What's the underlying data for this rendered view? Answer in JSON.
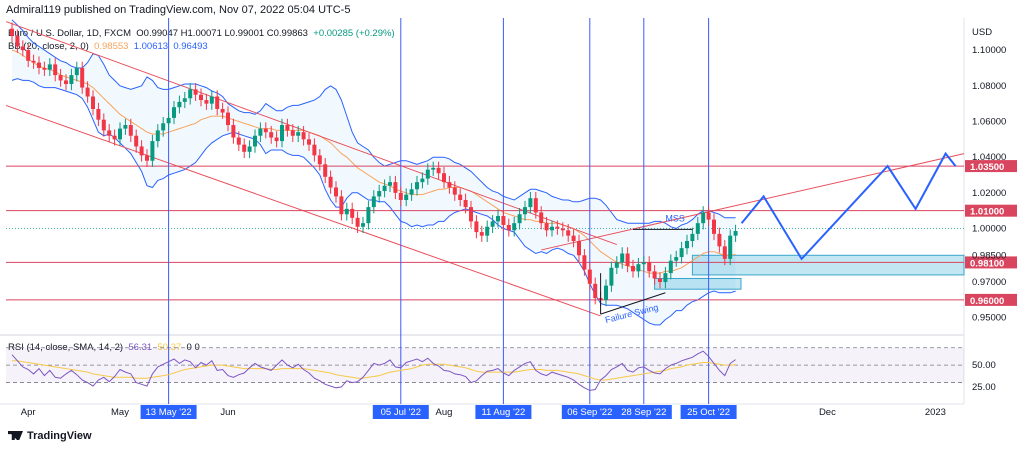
{
  "header": {
    "publisher": "Admiral119 published on TradingView.com, Nov 07, 2022 05:04 UTC-5"
  },
  "legend": {
    "symbol": "Euro / U.S. Dollar, 1D, FXCM",
    "ohlc": "O0.99047 H1.00071 L0.99001 C0.99863",
    "change": "+0.00285 (+0.29%)",
    "bb_label": "BB (20, close, 2, 0)",
    "bb_basis": "0.98553",
    "bb_upper": "1.00613",
    "bb_lower": "0.96493",
    "rsi_label": "RSI (14, close, SMA, 14, 2)",
    "rsi_value": "56.31",
    "rsi_sma": "50.37",
    "rsi_extra": "0  0"
  },
  "footer": {
    "brand": "TradingView"
  },
  "colors": {
    "up": "#089981",
    "down": "#f23645",
    "band": "#2962ff",
    "basis": "#f7a35c",
    "level": "#d9455f",
    "trend": "#e8505b",
    "projection": "#2962ff",
    "event_line": "#3d5afe",
    "zone": "#8fd3e8",
    "rsi": "#7e57c2",
    "rsi_sma": "#f7c948"
  },
  "chart_data": {
    "type": "candlestick",
    "symbol": "EURUSD",
    "timeframe": "1D",
    "y_axis_title": "USD",
    "ylim": [
      0.942,
      1.118
    ],
    "y_ticks": [
      1.1,
      1.08,
      1.06,
      1.04,
      1.02,
      1.0,
      0.985,
      0.97,
      0.95
    ],
    "x_ticks": [
      "Apr",
      "May",
      "Jun",
      "Aug",
      "Dec",
      "2023"
    ],
    "x_highlight_ticks": [
      "13 May '22",
      "05 Jul '22",
      "11 Aug '22",
      "06 Sep '22",
      "28 Sep '22",
      "25 Oct '22"
    ],
    "price_levels": [
      {
        "value": 1.035,
        "label": "1.03500"
      },
      {
        "value": 1.01,
        "label": "1.01000"
      },
      {
        "value": 0.981,
        "label": "0.98100"
      },
      {
        "value": 0.96,
        "label": "0.96000"
      }
    ],
    "annotations": [
      "MSS",
      "Failure Swing"
    ],
    "close_series": [
      1.108,
      1.102,
      1.1,
      1.094,
      1.093,
      1.09,
      1.089,
      1.092,
      1.086,
      1.083,
      1.081,
      1.086,
      1.09,
      1.079,
      1.074,
      1.067,
      1.061,
      1.055,
      1.052,
      1.05,
      1.056,
      1.058,
      1.052,
      1.046,
      1.041,
      1.038,
      1.049,
      1.055,
      1.059,
      1.062,
      1.068,
      1.071,
      1.073,
      1.078,
      1.075,
      1.072,
      1.07,
      1.074,
      1.067,
      1.065,
      1.058,
      1.051,
      1.047,
      1.043,
      1.046,
      1.052,
      1.056,
      1.054,
      1.051,
      1.049,
      1.058,
      1.055,
      1.052,
      1.054,
      1.05,
      1.047,
      1.041,
      1.036,
      1.029,
      1.023,
      1.018,
      1.008,
      1.011,
      1.006,
      1.001,
      1.003,
      1.012,
      1.018,
      1.021,
      1.024,
      1.026,
      1.02,
      1.016,
      1.019,
      1.022,
      1.026,
      1.028,
      1.033,
      1.034,
      1.031,
      1.026,
      1.023,
      1.019,
      1.016,
      1.012,
      1.004,
      0.998,
      0.996,
      1.001,
      1.004,
      1.007,
      1.002,
      0.999,
      1.003,
      1.008,
      1.012,
      1.017,
      1.009,
      1.003,
      0.999,
      1.001,
      1.0,
      0.999,
      0.996,
      0.993,
      0.985,
      0.977,
      0.969,
      0.961,
      0.96,
      0.968,
      0.978,
      0.981,
      0.986,
      0.979,
      0.976,
      0.98,
      0.981,
      0.976,
      0.972,
      0.97,
      0.975,
      0.982,
      0.984,
      0.989,
      0.993,
      0.997,
      1.003,
      1.009,
      1.005,
      0.997,
      0.99,
      0.983,
      0.996,
      0.9986
    ],
    "bb_upper_series": [
      1.117,
      1.114,
      1.111,
      1.107,
      1.104,
      1.102,
      1.1,
      1.098,
      1.096,
      1.094,
      1.093,
      1.091,
      1.09,
      1.09,
      1.093,
      1.098,
      1.097,
      1.092,
      1.086,
      1.083,
      1.08,
      1.079,
      1.078,
      1.079,
      1.08,
      1.085,
      1.083,
      1.079,
      1.078,
      1.078,
      1.079,
      1.08,
      1.081,
      1.081,
      1.081,
      1.08,
      1.079,
      1.077,
      1.076,
      1.074,
      1.07,
      1.068,
      1.066,
      1.065,
      1.065,
      1.064,
      1.066,
      1.07,
      1.068,
      1.066,
      1.066,
      1.068,
      1.069,
      1.069,
      1.07,
      1.071,
      1.072,
      1.074,
      1.078,
      1.08,
      1.078,
      1.072,
      1.063,
      1.054,
      1.048,
      1.046,
      1.044,
      1.04,
      1.037,
      1.035,
      1.036,
      1.037,
      1.038,
      1.038,
      1.037,
      1.036,
      1.037,
      1.038,
      1.04,
      1.04,
      1.04,
      1.039,
      1.037,
      1.036,
      1.034,
      1.032,
      1.029,
      1.026,
      1.023,
      1.021,
      1.02,
      1.018,
      1.017,
      1.016,
      1.018,
      1.02,
      1.022,
      1.022,
      1.021,
      1.02,
      1.018,
      1.017,
      1.016,
      1.016,
      1.015,
      1.015,
      1.016,
      1.017,
      1.017,
      1.016,
      1.013,
      1.009,
      1.005,
      1.004,
      1.003,
      1.003,
      1.003,
      1.003,
      1.003,
      1.004,
      1.004,
      1.003,
      1.001,
      1.0,
      1.002,
      1.003,
      1.005,
      1.008,
      1.01,
      1.01,
      1.009,
      1.008,
      1.006,
      1.006,
      1.006
    ],
    "bb_basis_series": [
      1.1,
      1.099,
      1.097,
      1.095,
      1.093,
      1.091,
      1.09,
      1.089,
      1.088,
      1.086,
      1.085,
      1.084,
      1.083,
      1.082,
      1.081,
      1.079,
      1.076,
      1.073,
      1.07,
      1.067,
      1.064,
      1.062,
      1.06,
      1.058,
      1.056,
      1.054,
      1.053,
      1.053,
      1.053,
      1.054,
      1.055,
      1.056,
      1.057,
      1.058,
      1.059,
      1.061,
      1.062,
      1.063,
      1.063,
      1.063,
      1.062,
      1.061,
      1.06,
      1.059,
      1.058,
      1.057,
      1.056,
      1.056,
      1.056,
      1.055,
      1.055,
      1.055,
      1.055,
      1.055,
      1.055,
      1.054,
      1.053,
      1.052,
      1.05,
      1.048,
      1.045,
      1.042,
      1.04,
      1.037,
      1.034,
      1.032,
      1.03,
      1.028,
      1.026,
      1.025,
      1.024,
      1.022,
      1.021,
      1.02,
      1.019,
      1.019,
      1.019,
      1.02,
      1.021,
      1.022,
      1.022,
      1.023,
      1.023,
      1.023,
      1.022,
      1.021,
      1.019,
      1.017,
      1.015,
      1.013,
      1.011,
      1.009,
      1.008,
      1.007,
      1.006,
      1.005,
      1.005,
      1.004,
      1.004,
      1.003,
      1.003,
      1.003,
      1.002,
      1.001,
      1.0,
      0.998,
      0.996,
      0.993,
      0.99,
      0.987,
      0.985,
      0.983,
      0.981,
      0.98,
      0.979,
      0.978,
      0.977,
      0.976,
      0.975,
      0.975,
      0.975,
      0.976,
      0.976,
      0.977,
      0.978,
      0.98,
      0.982,
      0.984,
      0.986,
      0.987,
      0.987,
      0.986,
      0.985,
      0.985,
      0.9855
    ],
    "bb_lower_series": [
      1.083,
      1.084,
      1.083,
      1.083,
      1.082,
      1.08,
      1.079,
      1.079,
      1.079,
      1.078,
      1.077,
      1.076,
      1.075,
      1.073,
      1.068,
      1.061,
      1.054,
      1.052,
      1.053,
      1.051,
      1.048,
      1.045,
      1.042,
      1.037,
      1.032,
      1.024,
      1.023,
      1.027,
      1.028,
      1.03,
      1.031,
      1.032,
      1.033,
      1.035,
      1.037,
      1.041,
      1.045,
      1.048,
      1.05,
      1.052,
      1.053,
      1.054,
      1.053,
      1.052,
      1.051,
      1.05,
      1.047,
      1.042,
      1.044,
      1.044,
      1.044,
      1.042,
      1.041,
      1.041,
      1.04,
      1.037,
      1.034,
      1.03,
      1.022,
      1.016,
      1.012,
      1.012,
      1.017,
      1.02,
      1.02,
      1.018,
      1.016,
      1.016,
      1.015,
      1.015,
      1.012,
      1.008,
      1.004,
      1.003,
      1.001,
      1.002,
      1.001,
      1.002,
      1.002,
      1.004,
      1.004,
      1.007,
      1.009,
      1.01,
      1.011,
      1.01,
      1.009,
      1.008,
      1.007,
      1.005,
      1.002,
      1.0,
      0.999,
      0.998,
      0.994,
      0.99,
      0.988,
      0.986,
      0.987,
      0.986,
      0.988,
      0.989,
      0.988,
      0.986,
      0.985,
      0.981,
      0.976,
      0.969,
      0.963,
      0.958,
      0.957,
      0.957,
      0.957,
      0.956,
      0.955,
      0.953,
      0.951,
      0.949,
      0.947,
      0.946,
      0.946,
      0.949,
      0.951,
      0.954,
      0.954,
      0.957,
      0.959,
      0.96,
      0.962,
      0.964,
      0.965,
      0.964,
      0.964,
      0.964,
      0.9649
    ],
    "rsi_series": [
      62,
      55,
      48,
      45,
      40,
      46,
      38,
      44,
      36,
      35,
      40,
      44,
      39,
      33,
      30,
      26,
      33,
      36,
      31,
      37,
      45,
      42,
      40,
      30,
      28,
      26,
      40,
      48,
      51,
      54,
      57,
      52,
      56,
      54,
      47,
      53,
      50,
      55,
      44,
      45,
      38,
      36,
      39,
      41,
      47,
      52,
      48,
      46,
      44,
      50,
      56,
      50,
      47,
      51,
      45,
      41,
      35,
      32,
      28,
      26,
      24,
      25,
      32,
      30,
      31,
      36,
      44,
      52,
      50,
      52,
      56,
      48,
      47,
      53,
      55,
      57,
      54,
      58,
      52,
      49,
      44,
      43,
      40,
      39,
      37,
      30,
      32,
      38,
      43,
      44,
      46,
      41,
      38,
      44,
      48,
      52,
      54,
      44,
      40,
      38,
      42,
      40,
      38,
      36,
      33,
      28,
      24,
      21,
      22,
      33,
      38,
      45,
      48,
      52,
      44,
      42,
      47,
      48,
      44,
      41,
      40,
      46,
      50,
      52,
      55,
      57,
      59,
      63,
      66,
      60,
      52,
      44,
      38,
      52,
      56.31
    ],
    "rsi_sma_series": [
      55,
      55,
      54,
      53,
      52,
      51,
      50,
      49,
      48,
      47,
      46,
      45,
      44,
      43,
      42,
      40,
      39,
      38,
      37,
      36,
      36,
      36,
      36,
      35,
      35,
      35,
      36,
      37,
      38,
      39,
      41,
      43,
      45,
      46,
      47,
      48,
      49,
      50,
      50,
      50,
      49,
      48,
      47,
      46,
      46,
      46,
      46,
      46,
      45,
      45,
      46,
      46,
      46,
      46,
      46,
      45,
      44,
      43,
      42,
      41,
      39,
      38,
      37,
      36,
      35,
      35,
      36,
      37,
      38,
      40,
      42,
      43,
      44,
      45,
      46,
      48,
      50,
      51,
      51,
      51,
      51,
      50,
      49,
      48,
      47,
      45,
      43,
      42,
      42,
      42,
      42,
      42,
      42,
      42,
      43,
      44,
      45,
      45,
      45,
      44,
      44,
      44,
      43,
      42,
      41,
      40,
      38,
      36,
      34,
      33,
      33,
      34,
      35,
      36,
      37,
      38,
      39,
      40,
      41,
      42,
      43,
      44,
      46,
      47,
      48,
      50,
      51,
      52,
      53,
      53,
      52,
      51,
      50,
      50,
      50.37
    ],
    "rsi_ylim": [
      10,
      80
    ],
    "rsi_ticks": [
      50.0,
      25.0
    ]
  }
}
